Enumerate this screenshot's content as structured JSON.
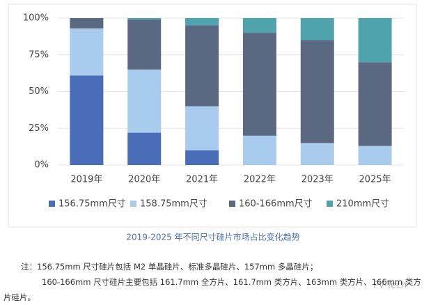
{
  "chart_data": {
    "type": "stacked-bar",
    "categories": [
      "2019年",
      "2020年",
      "2021年",
      "2022年",
      "2023年",
      "2025年"
    ],
    "series": [
      {
        "name": "156.75mm尺寸",
        "color": "#4a6db8",
        "values": [
          61,
          22,
          10,
          0,
          0,
          0
        ]
      },
      {
        "name": "158.75mm尺寸",
        "color": "#a9cbee",
        "values": [
          32,
          43,
          30,
          20,
          15,
          13
        ]
      },
      {
        "name": "160-166mm尺寸",
        "color": "#5a6882",
        "values": [
          7,
          34,
          55,
          70,
          70,
          57
        ]
      },
      {
        "name": "210mm尺寸",
        "color": "#4fa3ad",
        "values": [
          0,
          1,
          5,
          10,
          15,
          30
        ]
      }
    ],
    "ylim": [
      0,
      100
    ],
    "yticks": [
      {
        "value": 0,
        "label": "0%"
      },
      {
        "value": 25,
        "label": "25%"
      },
      {
        "value": 50,
        "label": "50%"
      },
      {
        "value": 75,
        "label": "75%"
      },
      {
        "value": 100,
        "label": "100%"
      }
    ],
    "grid": true,
    "caption": "2019-2025 年不同尺寸硅片市场占比变化趋势",
    "notes": [
      "注：156.75mm 尺寸硅片包括 M2 单晶硅片、标准多晶硅片、157mm 多晶硅片；",
      "160-166mm 尺寸硅片主要包括 161.7mm 全方片、161.7mm 类方片、163mm 类方片、166mm 类方片硅片。"
    ],
    "watermark": "PV-Tech"
  }
}
